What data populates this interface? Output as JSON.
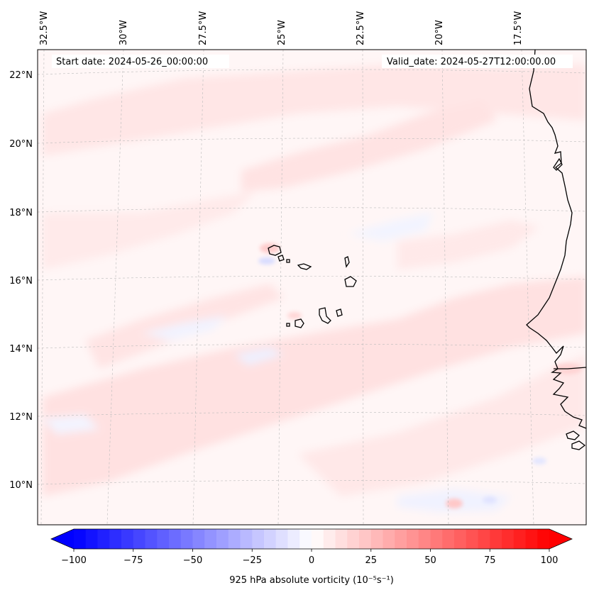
{
  "map": {
    "title_left": "Start date: 2024-05-26_00:00:00",
    "title_right": "Valid_date: 2024-05-27T12:00:00.00",
    "lon_labels": [
      "32.5°W",
      "30°W",
      "27.5°W",
      "25°W",
      "22.5°W",
      "20°W",
      "17.5°W"
    ],
    "lat_labels": [
      "22°N",
      "20°N",
      "18°N",
      "16°N",
      "14°N",
      "12°N",
      "10°N"
    ],
    "extent": {
      "lon_min": -33.0,
      "lon_max": -15.5,
      "lat_min": 8.9,
      "lat_max": 22.7
    },
    "coastline_color": "#000000",
    "features": [
      "Cape Verde Islands",
      "West African coast"
    ]
  },
  "colorbar": {
    "label": "925 hPa absolute vorticity (10⁻⁵s⁻¹)",
    "min": -100,
    "max": 100,
    "ticks": [
      "−100",
      "−75",
      "−50",
      "−25",
      "0",
      "25",
      "50",
      "75",
      "100"
    ],
    "colormap": "bwr",
    "low_color": "#0000ff",
    "mid_color": "#ffffff",
    "high_color": "#ff0000",
    "levels": 41
  }
}
